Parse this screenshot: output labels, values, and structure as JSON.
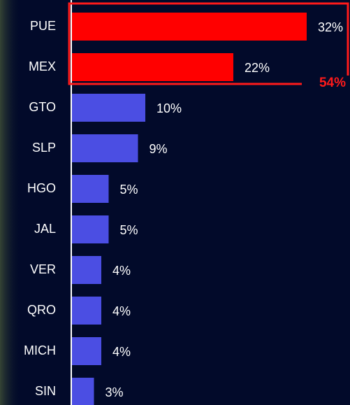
{
  "chart_data": {
    "type": "bar",
    "orientation": "horizontal",
    "categories": [
      "PUE",
      "MEX",
      "GTO",
      "SLP",
      "HGO",
      "JAL",
      "VER",
      "QRO",
      "MICH",
      "SIN"
    ],
    "values": [
      32,
      22,
      10,
      9,
      5,
      5,
      4,
      4,
      4,
      3
    ],
    "value_labels": [
      "32%",
      "22%",
      "10%",
      "9%",
      "5%",
      "5%",
      "4%",
      "4%",
      "4%",
      "3%"
    ],
    "colors": [
      "#ff0000",
      "#ff0000",
      "#4b4ee3",
      "#4b4ee3",
      "#4b4ee3",
      "#4b4ee3",
      "#4b4ee3",
      "#4b4ee3",
      "#4b4ee3",
      "#4b4ee3"
    ],
    "annotation": "54%",
    "annotation_color": "#ff1a1a"
  }
}
